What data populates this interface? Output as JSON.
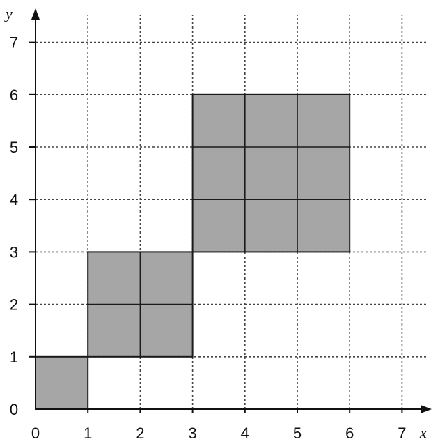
{
  "axes": {
    "x_name": "x",
    "y_name": "y",
    "x_ticks": [
      "0",
      "1",
      "2",
      "3",
      "4",
      "5",
      "6",
      "7"
    ],
    "y_ticks": [
      "0",
      "1",
      "2",
      "3",
      "4",
      "5",
      "6",
      "7"
    ],
    "xlim": [
      0,
      7
    ],
    "ylim": [
      0,
      7
    ],
    "grid": "dotted"
  },
  "colors": {
    "square_fill": "#a6a6a6",
    "square_stroke": "#1a1a1a",
    "grid": "#444444",
    "axis": "#111111"
  },
  "squares": [
    {
      "x": 0,
      "y": 0,
      "size": 1
    },
    {
      "x": 1,
      "y": 1,
      "size": 2
    },
    {
      "x": 3,
      "y": 3,
      "size": 3
    }
  ]
}
